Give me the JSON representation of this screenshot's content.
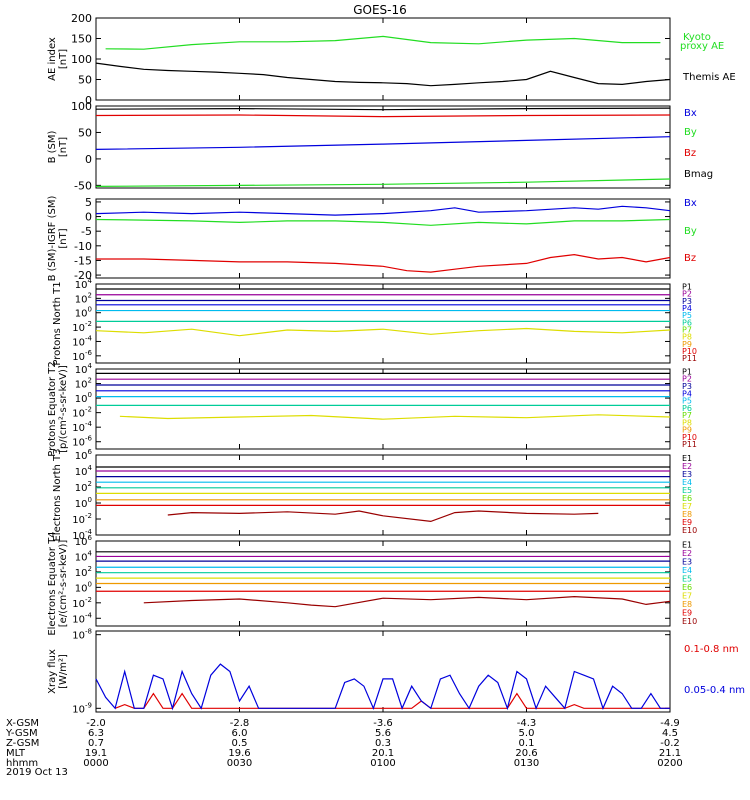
{
  "title": "GOES-16",
  "date": "2019 Oct 13",
  "colors": {
    "black": "#000000",
    "red": "#e00000",
    "green": "#22dd22",
    "blue": "#0000dd",
    "purple": "#990099",
    "navy": "#000099",
    "cyan": "#00bbee",
    "teal": "#00cc99",
    "lime": "#66dd00",
    "yellow": "#dddd00",
    "orange": "#ee9900",
    "darkred": "#990000"
  },
  "ephemeris": {
    "labels": [
      "X-GSM",
      "Y-GSM",
      "Z-GSM",
      "MLT",
      "hhmm"
    ],
    "columns": [
      {
        "values": [
          "-2.0",
          "6.3",
          "0.7",
          "19.1",
          "0000"
        ]
      },
      {
        "values": [
          "-2.8",
          "6.0",
          "0.5",
          "19.6",
          "0030"
        ]
      },
      {
        "values": [
          "-3.6",
          "5.6",
          "0.3",
          "20.1",
          "0100"
        ]
      },
      {
        "values": [
          "-4.3",
          "5.0",
          "0.1",
          "20.6",
          "0130"
        ]
      },
      {
        "values": [
          "-4.9",
          "4.5",
          "-0.2",
          "21.1",
          "0200"
        ]
      }
    ]
  },
  "chart_data": [
    {
      "type": "line",
      "ylabel": "AE index [nT]",
      "ylim": [
        0,
        200
      ],
      "yticks": [
        "200",
        "150",
        "100",
        "50",
        "0"
      ],
      "series": [
        {
          "name": "Kyoto proxy AE",
          "color": "green",
          "x": [
            2,
            10,
            20,
            30,
            40,
            50,
            60,
            70,
            80,
            90,
            100,
            110,
            118
          ],
          "y": [
            125,
            124,
            135,
            142,
            142,
            145,
            155,
            140,
            137,
            146,
            150,
            140,
            140
          ]
        },
        {
          "name": "Themis AE",
          "color": "black",
          "x": [
            0,
            5,
            10,
            15,
            20,
            25,
            30,
            35,
            40,
            45,
            50,
            55,
            60,
            65,
            70,
            75,
            80,
            85,
            90,
            95,
            100,
            105,
            110,
            115,
            120
          ],
          "y": [
            90,
            82,
            75,
            72,
            70,
            68,
            65,
            62,
            55,
            50,
            45,
            43,
            42,
            40,
            35,
            38,
            42,
            45,
            50,
            70,
            55,
            40,
            38,
            45,
            50
          ]
        }
      ]
    },
    {
      "type": "line",
      "ylabel": "B (SM) [nT]",
      "ylim": [
        -55,
        100
      ],
      "yticks": [
        "100",
        "50",
        "0",
        "-50"
      ],
      "series": [
        {
          "name": "Bx",
          "color": "blue",
          "x": [
            0,
            30,
            60,
            90,
            120
          ],
          "y": [
            18,
            22,
            28,
            35,
            42
          ]
        },
        {
          "name": "By",
          "color": "green",
          "x": [
            0,
            30,
            60,
            90,
            120
          ],
          "y": [
            -52,
            -50,
            -48,
            -44,
            -38
          ]
        },
        {
          "name": "Bz",
          "color": "red",
          "x": [
            0,
            30,
            60,
            90,
            120
          ],
          "y": [
            82,
            83,
            80,
            82,
            83
          ]
        },
        {
          "name": "Bmag",
          "color": "black",
          "x": [
            0,
            30,
            60,
            90,
            120
          ],
          "y": [
            94,
            95,
            93,
            95,
            96
          ]
        }
      ]
    },
    {
      "type": "line",
      "ylabel": "B (SM)-IGRF (SM) [nT]",
      "ylim": [
        -21,
        6
      ],
      "yticks": [
        "5",
        "0",
        "-5",
        "-10",
        "-15",
        "-20"
      ],
      "series": [
        {
          "name": "Bx",
          "color": "blue",
          "x": [
            0,
            10,
            20,
            30,
            40,
            50,
            60,
            70,
            75,
            80,
            90,
            100,
            105,
            110,
            115,
            120
          ],
          "y": [
            1,
            1.5,
            1,
            1.5,
            1,
            0.5,
            1,
            2,
            3,
            1.5,
            2,
            3,
            2.5,
            3.5,
            3,
            2
          ]
        },
        {
          "name": "By",
          "color": "green",
          "x": [
            0,
            10,
            20,
            30,
            40,
            50,
            60,
            70,
            80,
            90,
            100,
            110,
            120
          ],
          "y": [
            -1,
            -1.2,
            -1.5,
            -2,
            -1.5,
            -1.5,
            -2,
            -3,
            -2,
            -2.5,
            -1.5,
            -1.5,
            -1
          ]
        },
        {
          "name": "Bz",
          "color": "red",
          "x": [
            0,
            10,
            20,
            30,
            40,
            50,
            60,
            65,
            70,
            75,
            80,
            90,
            95,
            100,
            105,
            110,
            115,
            120
          ],
          "y": [
            -14.5,
            -14.5,
            -15,
            -15.5,
            -15.5,
            -16,
            -17,
            -18.5,
            -19,
            -18,
            -17,
            -16,
            -14,
            -13,
            -14.5,
            -14,
            -15.5,
            -14
          ]
        }
      ]
    },
    {
      "type": "line",
      "ylabel": "Protons North T1",
      "yscale": "log",
      "ylim_exp": [
        -7,
        4
      ],
      "yticks_exp": [
        4,
        2,
        0,
        -2,
        -4,
        -6
      ],
      "channels": [
        "P1",
        "P2",
        "P3",
        "P4",
        "P5",
        "P6",
        "P7",
        "P8",
        "P9",
        "P10",
        "P11"
      ],
      "channel_colors": [
        "black",
        "purple",
        "navy",
        "blue",
        "cyan",
        "teal",
        "lime",
        "yellow",
        "orange",
        "red",
        "darkred"
      ],
      "series": [
        {
          "name": "P1",
          "color": "black",
          "y_exp": 3.3
        },
        {
          "name": "P2",
          "color": "purple",
          "y_exp": 2.5
        },
        {
          "name": "P3",
          "color": "navy",
          "y_exp": 1.7
        },
        {
          "name": "P4",
          "color": "blue",
          "y_exp": 1.1
        },
        {
          "name": "P5",
          "color": "cyan",
          "y_exp": 0.3
        },
        {
          "name": "P6",
          "color": "teal",
          "y_exp": -1.2
        },
        {
          "name": "P7",
          "color": "yellow",
          "x": [
            0,
            10,
            20,
            30,
            40,
            50,
            60,
            70,
            80,
            90,
            100,
            110,
            120
          ],
          "y_exp": [
            -2.5,
            -2.8,
            -2.3,
            -3.2,
            -2.4,
            -2.6,
            -2.3,
            -3.0,
            -2.5,
            -2.2,
            -2.6,
            -2.8,
            -2.4
          ]
        }
      ]
    },
    {
      "type": "line",
      "ylabel": "Protons Equator T2 [p/(cm²-s-sr-keV)]",
      "yscale": "log",
      "ylim_exp": [
        -7,
        4
      ],
      "yticks_exp": [
        4,
        2,
        0,
        -2,
        -4,
        -6
      ],
      "channels": [
        "P1",
        "P2",
        "P3",
        "P4",
        "P5",
        "P6",
        "P7",
        "P8",
        "P9",
        "P10",
        "P11"
      ],
      "channel_colors": [
        "black",
        "purple",
        "navy",
        "blue",
        "cyan",
        "teal",
        "lime",
        "yellow",
        "orange",
        "red",
        "darkred"
      ],
      "series": [
        {
          "name": "P1",
          "color": "black",
          "y_exp": 3.4
        },
        {
          "name": "P2",
          "color": "purple",
          "y_exp": 2.6
        },
        {
          "name": "P3",
          "color": "navy",
          "y_exp": 1.8
        },
        {
          "name": "P4",
          "color": "blue",
          "y_exp": 1.0
        },
        {
          "name": "P5",
          "color": "cyan",
          "y_exp": 0.2
        },
        {
          "name": "P6",
          "color": "teal",
          "y_exp": -1.0
        },
        {
          "name": "P7",
          "color": "yellow",
          "x": [
            5,
            15,
            30,
            45,
            60,
            75,
            90,
            105,
            120
          ],
          "y_exp": [
            -2.5,
            -2.8,
            -2.6,
            -2.4,
            -2.9,
            -2.5,
            -2.7,
            -2.3,
            -2.6
          ]
        }
      ]
    },
    {
      "type": "line",
      "ylabel": "Electrons North T3",
      "yscale": "log",
      "ylim_exp": [
        -4,
        6
      ],
      "yticks_exp": [
        6,
        4,
        2,
        0,
        -2,
        -4
      ],
      "channels": [
        "E1",
        "E2",
        "E3",
        "E4",
        "E5",
        "E6",
        "E7",
        "E8",
        "E9",
        "E10"
      ],
      "channel_colors": [
        "black",
        "purple",
        "navy",
        "cyan",
        "teal",
        "lime",
        "yellow",
        "orange",
        "red",
        "darkred"
      ],
      "series": [
        {
          "name": "E1",
          "color": "black",
          "y_exp": 4.5
        },
        {
          "name": "E2",
          "color": "purple",
          "y_exp": 4.0
        },
        {
          "name": "E3",
          "color": "navy",
          "y_exp": 3.3
        },
        {
          "name": "E4",
          "color": "cyan",
          "y_exp": 2.6
        },
        {
          "name": "E5",
          "color": "teal",
          "y_exp": 1.9
        },
        {
          "name": "E6",
          "color": "yellow",
          "y_exp": 1.2
        },
        {
          "name": "E7",
          "color": "orange",
          "y_exp": 0.4
        },
        {
          "name": "E8",
          "color": "red",
          "y_exp": -0.3
        },
        {
          "name": "E9",
          "color": "darkred",
          "x": [
            15,
            20,
            30,
            40,
            50,
            55,
            60,
            70,
            75,
            80,
            90,
            100,
            105
          ],
          "y_exp": [
            -1.5,
            -1.2,
            -1.3,
            -1.1,
            -1.4,
            -1.0,
            -1.6,
            -2.3,
            -1.2,
            -1.0,
            -1.3,
            -1.4,
            -1.3
          ]
        }
      ]
    },
    {
      "type": "line",
      "ylabel": "Electrons Equator T4 [e/(cm²-s-sr-keV)]",
      "yscale": "log",
      "ylim_exp": [
        -5,
        6
      ],
      "yticks_exp": [
        6,
        4,
        2,
        0,
        -2,
        -4
      ],
      "channels": [
        "E1",
        "E2",
        "E3",
        "E4",
        "E5",
        "E6",
        "E7",
        "E8",
        "E9",
        "E10"
      ],
      "channel_colors": [
        "black",
        "purple",
        "navy",
        "cyan",
        "teal",
        "lime",
        "yellow",
        "orange",
        "red",
        "darkred"
      ],
      "series": [
        {
          "name": "E1",
          "color": "black",
          "y_exp": 4.6
        },
        {
          "name": "E2",
          "color": "purple",
          "y_exp": 4.0
        },
        {
          "name": "E3",
          "color": "navy",
          "y_exp": 3.4
        },
        {
          "name": "E4",
          "color": "cyan",
          "y_exp": 2.6
        },
        {
          "name": "E5",
          "color": "teal",
          "y_exp": 1.9
        },
        {
          "name": "E6",
          "color": "yellow",
          "y_exp": 1.2
        },
        {
          "name": "E7",
          "color": "orange",
          "y_exp": 0.5
        },
        {
          "name": "E8",
          "color": "red",
          "y_exp": -0.5
        },
        {
          "name": "E9",
          "color": "darkred",
          "x": [
            10,
            20,
            30,
            40,
            45,
            50,
            60,
            70,
            80,
            90,
            100,
            110,
            115,
            120
          ],
          "y_exp": [
            -2.0,
            -1.7,
            -1.5,
            -2.0,
            -2.3,
            -2.5,
            -1.4,
            -1.6,
            -1.3,
            -1.6,
            -1.2,
            -1.5,
            -2.2,
            -1.8
          ]
        }
      ]
    },
    {
      "type": "line",
      "ylabel": "Xray flux [W/m²]",
      "yscale": "log",
      "ylim_exp": [
        -9.05,
        -7.95
      ],
      "yticks_exp": [
        -8,
        -9
      ],
      "series": [
        {
          "name": "0.1-0.8 nm",
          "color": "red",
          "x": [
            4,
            6,
            8,
            10,
            12,
            14,
            16,
            18,
            20,
            22,
            24,
            26,
            28,
            30,
            35,
            40,
            60,
            62,
            64,
            66,
            68,
            70,
            72,
            74,
            76,
            78,
            80,
            82,
            84,
            86,
            88,
            90,
            92,
            94,
            96,
            98,
            100,
            102,
            104,
            106,
            108,
            110,
            112,
            114,
            116,
            118,
            120
          ],
          "y_exp": [
            -9.0,
            -8.95,
            -9.0,
            -9.0,
            -8.8,
            -9.0,
            -9.0,
            -8.8,
            -9.0,
            -9.0,
            -9.0,
            -9.0,
            -9.0,
            -9.0,
            -9.0,
            -9.0,
            -9.0,
            -9.0,
            -9.0,
            -9.0,
            -8.9,
            -9.0,
            -9.0,
            -9.0,
            -9.0,
            -9.0,
            -9.0,
            -9.0,
            -9.0,
            -9.0,
            -8.8,
            -9.0,
            -9.0,
            -9.0,
            -9.0,
            -9.0,
            -8.95,
            -9.0,
            -9.0,
            -9.0,
            -9.0,
            -9.0,
            -9.0,
            -9.0,
            -9.0,
            -9.0,
            -9.0
          ]
        },
        {
          "name": "0.05-0.4 nm",
          "color": "blue",
          "x": [
            0,
            2,
            4,
            6,
            8,
            10,
            12,
            14,
            16,
            18,
            20,
            22,
            24,
            26,
            28,
            30,
            32,
            34,
            36,
            38,
            40,
            42,
            44,
            46,
            48,
            50,
            52,
            54,
            56,
            58,
            60,
            62,
            64,
            66,
            68,
            70,
            72,
            74,
            76,
            78,
            80,
            82,
            84,
            86,
            88,
            90,
            92,
            94,
            96,
            98,
            100,
            102,
            104,
            106,
            108,
            110,
            112,
            114,
            116,
            118,
            120
          ],
          "y_exp": [
            -8.6,
            -8.85,
            -9.0,
            -8.5,
            -9.0,
            -9.0,
            -8.55,
            -8.6,
            -9.0,
            -8.5,
            -8.8,
            -9.0,
            -8.55,
            -8.4,
            -8.5,
            -8.9,
            -8.7,
            -9.0,
            -9.0,
            -9.0,
            -9.0,
            -9.0,
            -9.0,
            -9.0,
            -9.0,
            -9.0,
            -8.65,
            -8.6,
            -8.7,
            -9.0,
            -8.6,
            -8.6,
            -9.0,
            -8.7,
            -8.9,
            -9.0,
            -8.6,
            -8.55,
            -8.8,
            -9.0,
            -8.7,
            -8.55,
            -8.65,
            -9.0,
            -8.5,
            -8.6,
            -9.0,
            -8.7,
            -8.85,
            -9.0,
            -8.5,
            -8.55,
            -8.6,
            -9.0,
            -8.7,
            -8.8,
            -9.0,
            -9.0,
            -8.8,
            -9.0,
            -9.0
          ]
        }
      ]
    }
  ]
}
